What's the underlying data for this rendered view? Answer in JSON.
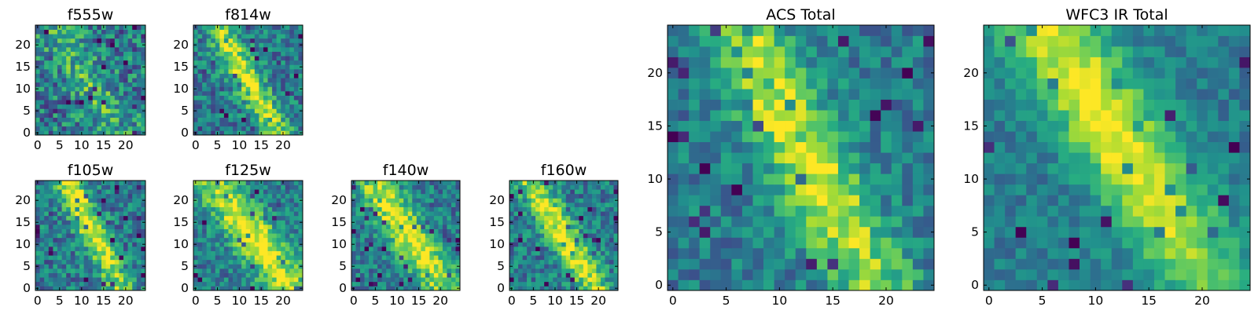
{
  "chart_data": [
    {
      "type": "heatmap",
      "title": "f555w",
      "grid": [
        25,
        25
      ],
      "xlim": [
        -0.5,
        24.5
      ],
      "ylim": [
        -0.5,
        24.5
      ],
      "xticks": [
        0,
        5,
        10,
        15,
        20
      ],
      "yticks": [
        0,
        5,
        10,
        15,
        20
      ],
      "colormap": "viridis",
      "feature": "faint noisy emission along a diagonal band from upper-left to lower-right",
      "seed": 11,
      "amp": 0.25,
      "noise": 0.55,
      "width": 3.2,
      "slope": 1.55,
      "offset": 29,
      "center": [
        14,
        8
      ]
    },
    {
      "type": "heatmap",
      "title": "f814w",
      "grid": [
        25,
        25
      ],
      "xlim": [
        -0.5,
        24.5
      ],
      "ylim": [
        -0.5,
        24.5
      ],
      "xticks": [
        0,
        5,
        10,
        15,
        20
      ],
      "yticks": [
        0,
        5,
        10,
        15,
        20
      ],
      "colormap": "viridis",
      "feature": "bright diagonal ridge from about (7,22) to (16,4)",
      "seed": 23,
      "amp": 0.55,
      "noise": 0.45,
      "width": 2.2,
      "slope": 1.75,
      "offset": 33,
      "center": [
        12,
        13
      ]
    },
    {
      "type": "heatmap",
      "title": "f105w",
      "grid": [
        25,
        25
      ],
      "xlim": [
        -0.5,
        24.5
      ],
      "ylim": [
        -0.5,
        24.5
      ],
      "xticks": [
        0,
        5,
        10,
        15,
        20
      ],
      "yticks": [
        0,
        5,
        10,
        15,
        20
      ],
      "colormap": "viridis",
      "feature": "bright elongated source near (10-13, 12-20)",
      "seed": 37,
      "amp": 0.6,
      "noise": 0.45,
      "width": 2.0,
      "slope": 2.0,
      "offset": 38,
      "center": [
        11,
        16
      ]
    },
    {
      "type": "heatmap",
      "title": "f125w",
      "grid": [
        25,
        25
      ],
      "xlim": [
        -0.5,
        24.5
      ],
      "ylim": [
        -0.5,
        24.5
      ],
      "xticks": [
        0,
        5,
        10,
        15,
        20
      ],
      "yticks": [
        0,
        5,
        10,
        15,
        20
      ],
      "colormap": "viridis",
      "feature": "broad bright diagonal band",
      "seed": 41,
      "amp": 0.6,
      "noise": 0.4,
      "width": 3.4,
      "slope": 1.3,
      "offset": 29,
      "center": [
        14,
        10
      ]
    },
    {
      "type": "heatmap",
      "title": "f140w",
      "grid": [
        25,
        25
      ],
      "xlim": [
        -0.5,
        24.5
      ],
      "ylim": [
        -0.5,
        24.5
      ],
      "xticks": [
        0,
        5,
        10,
        15,
        20
      ],
      "yticks": [
        0,
        5,
        10,
        15,
        20
      ],
      "colormap": "viridis",
      "feature": "bright diffuse diagonal band with fainter lower-left corner",
      "seed": 53,
      "amp": 0.6,
      "noise": 0.4,
      "width": 3.0,
      "slope": 1.4,
      "offset": 30,
      "center": [
        12,
        12
      ]
    },
    {
      "type": "heatmap",
      "title": "f160w",
      "grid": [
        25,
        25
      ],
      "xlim": [
        -0.5,
        24.5
      ],
      "ylim": [
        -0.5,
        24.5
      ],
      "xticks": [
        0,
        5,
        10,
        15,
        20
      ],
      "yticks": [
        0,
        5,
        10,
        15,
        20
      ],
      "colormap": "viridis",
      "feature": "bright diagonal ridge from about (8,20) to (18,2)",
      "seed": 67,
      "amp": 0.6,
      "noise": 0.42,
      "width": 2.4,
      "slope": 1.6,
      "offset": 31,
      "center": [
        12,
        12
      ]
    },
    {
      "type": "heatmap",
      "title": "ACS Total",
      "grid": [
        25,
        25
      ],
      "xlim": [
        -0.5,
        24.5
      ],
      "ylim": [
        -0.5,
        24.5
      ],
      "xticks": [
        0,
        5,
        10,
        15,
        20
      ],
      "yticks": [
        0,
        5,
        10,
        15,
        20
      ],
      "colormap": "viridis",
      "feature": "bright diagonal ridge from about (8,20) to (17,3)",
      "seed": 79,
      "amp": 0.55,
      "noise": 0.35,
      "width": 2.6,
      "slope": 1.9,
      "offset": 36,
      "center": [
        12,
        12
      ]
    },
    {
      "type": "heatmap",
      "title": "WFC3 IR Total",
      "grid": [
        25,
        25
      ],
      "xlim": [
        -0.5,
        24.5
      ],
      "ylim": [
        -0.5,
        24.5
      ],
      "xticks": [
        0,
        5,
        10,
        15,
        20
      ],
      "yticks": [
        0,
        5,
        10,
        15,
        20
      ],
      "colormap": "viridis",
      "feature": "smooth bright ridge peaking near (11,15), extending to (19,5)",
      "seed": 97,
      "amp": 0.6,
      "noise": 0.25,
      "width": 3.0,
      "slope": 1.5,
      "offset": 32,
      "center": [
        11,
        15
      ]
    }
  ]
}
